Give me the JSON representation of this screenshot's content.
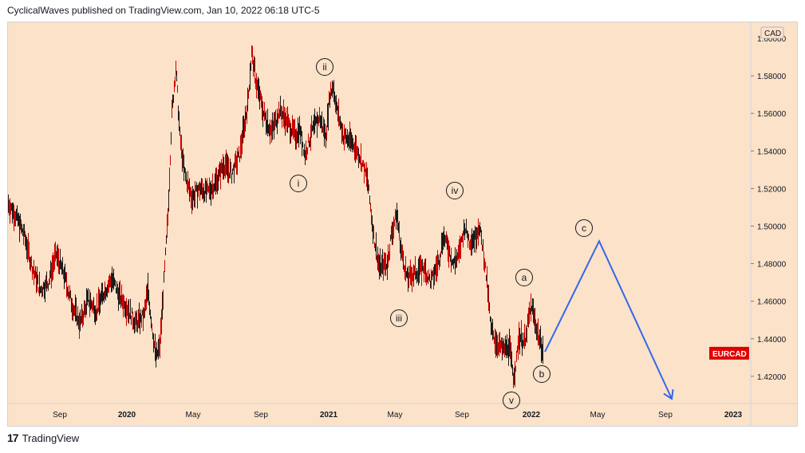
{
  "header": {
    "text": "CyclicalWaves published on TradingView.com, Jan 10, 2022 06:18 UTC-5"
  },
  "footer": {
    "brand": "TradingView",
    "logo_text": "17"
  },
  "colors": {
    "background": "#fbe2c8",
    "bars": "#cc0000",
    "projection": "#3366ee",
    "symbol_badge": "#e00000"
  },
  "chart_data": {
    "type": "line",
    "symbol": "EURCAD",
    "currency": "CAD",
    "y_ticks": [
      "1.42000",
      "1.44000",
      "1.46000",
      "1.48000",
      "1.50000",
      "1.52000",
      "1.54000",
      "1.56000",
      "1.58000"
    ],
    "ylim": [
      1.4055,
      1.6085
    ],
    "x_ticks": [
      "Sep",
      "2020",
      "May",
      "Sep",
      "2021",
      "May",
      "Sep",
      "2022",
      "May",
      "Sep",
      "2023"
    ],
    "price_path": [
      [
        0,
        1.512
      ],
      [
        10,
        1.505
      ],
      [
        20,
        1.495
      ],
      [
        30,
        1.478
      ],
      [
        40,
        1.466
      ],
      [
        50,
        1.47
      ],
      [
        60,
        1.485
      ],
      [
        70,
        1.474
      ],
      [
        80,
        1.458
      ],
      [
        90,
        1.448
      ],
      [
        100,
        1.461
      ],
      [
        110,
        1.455
      ],
      [
        120,
        1.465
      ],
      [
        130,
        1.472
      ],
      [
        140,
        1.462
      ],
      [
        150,
        1.456
      ],
      [
        160,
        1.448
      ],
      [
        170,
        1.452
      ],
      [
        175,
        1.466
      ],
      [
        180,
        1.447
      ],
      [
        185,
        1.43
      ],
      [
        190,
        1.436
      ],
      [
        195,
        1.47
      ],
      [
        200,
        1.505
      ],
      [
        205,
        1.56
      ],
      [
        210,
        1.585
      ],
      [
        215,
        1.548
      ],
      [
        220,
        1.53
      ],
      [
        225,
        1.522
      ],
      [
        230,
        1.515
      ],
      [
        240,
        1.52
      ],
      [
        250,
        1.518
      ],
      [
        260,
        1.523
      ],
      [
        270,
        1.533
      ],
      [
        280,
        1.528
      ],
      [
        290,
        1.538
      ],
      [
        300,
        1.565
      ],
      [
        305,
        1.592
      ],
      [
        310,
        1.578
      ],
      [
        320,
        1.56
      ],
      [
        330,
        1.55
      ],
      [
        340,
        1.562
      ],
      [
        350,
        1.555
      ],
      [
        360,
        1.548
      ],
      [
        365,
        1.552
      ],
      [
        372,
        1.538
      ],
      [
        380,
        1.55
      ],
      [
        390,
        1.558
      ],
      [
        398,
        1.548
      ],
      [
        403,
        1.57
      ],
      [
        407,
        1.575
      ],
      [
        412,
        1.562
      ],
      [
        420,
        1.548
      ],
      [
        430,
        1.545
      ],
      [
        440,
        1.538
      ],
      [
        450,
        1.525
      ],
      [
        458,
        1.495
      ],
      [
        465,
        1.478
      ],
      [
        475,
        1.48
      ],
      [
        480,
        1.495
      ],
      [
        487,
        1.507
      ],
      [
        492,
        1.488
      ],
      [
        500,
        1.472
      ],
      [
        510,
        1.475
      ],
      [
        520,
        1.478
      ],
      [
        530,
        1.47
      ],
      [
        540,
        1.482
      ],
      [
        545,
        1.495
      ],
      [
        550,
        1.49
      ],
      [
        558,
        1.48
      ],
      [
        565,
        1.485
      ],
      [
        572,
        1.5
      ],
      [
        578,
        1.492
      ],
      [
        585,
        1.494
      ],
      [
        590,
        1.5
      ],
      [
        595,
        1.488
      ],
      [
        600,
        1.47
      ],
      [
        605,
        1.445
      ],
      [
        612,
        1.438
      ],
      [
        620,
        1.434
      ],
      [
        628,
        1.436
      ],
      [
        633,
        1.42
      ],
      [
        637,
        1.428
      ],
      [
        640,
        1.442
      ],
      [
        648,
        1.438
      ],
      [
        652,
        1.45
      ],
      [
        656,
        1.458
      ],
      [
        660,
        1.449
      ],
      [
        665,
        1.441
      ],
      [
        670,
        1.434
      ]
    ],
    "projection_path": [
      [
        673,
        1.433
      ],
      [
        741,
        1.492
      ],
      [
        832,
        1.408
      ]
    ],
    "wave_labels": [
      "i",
      "ii",
      "iii",
      "iv",
      "v",
      "a",
      "b",
      "c"
    ]
  }
}
